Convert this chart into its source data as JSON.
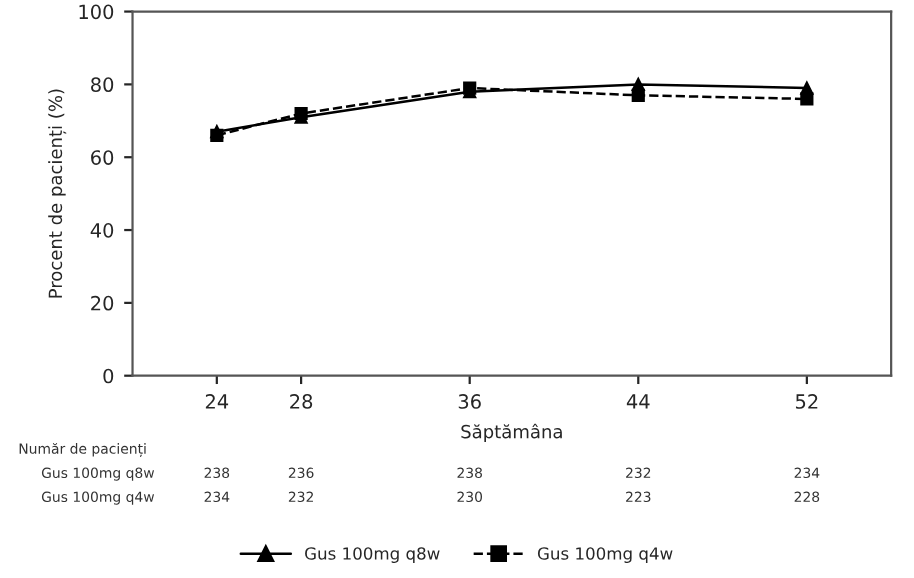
{
  "chart_data": {
    "type": "line",
    "xlabel": "Săptămâna",
    "ylabel": "Procent de pacienți (%)",
    "x": [
      24,
      28,
      36,
      44,
      52
    ],
    "series": [
      {
        "name": "Gus 100mg q8w",
        "color": "#000000",
        "values": [
          67,
          71,
          78,
          80,
          79
        ],
        "marker": "triangle",
        "line_style": "solid"
      },
      {
        "name": "Gus 100mg q4w",
        "color": "#000000",
        "values": [
          66,
          72,
          79,
          77,
          76
        ],
        "marker": "square",
        "line_style": "dashed"
      }
    ],
    "xlim": [
      20,
      56
    ],
    "xticks": [
      24,
      28,
      36,
      44,
      52
    ],
    "ylim": [
      0,
      100
    ],
    "yticks": [
      0,
      20,
      40,
      60,
      80,
      100
    ],
    "grid": false,
    "legend": "bottom",
    "annotations": [
      "Număr de pacienți",
      "Gus 100mg q8w",
      "238",
      "236",
      "238",
      "232",
      "234",
      "Gus 100mg q4w",
      "234",
      "232",
      "230",
      "223",
      "228"
    ]
  }
}
